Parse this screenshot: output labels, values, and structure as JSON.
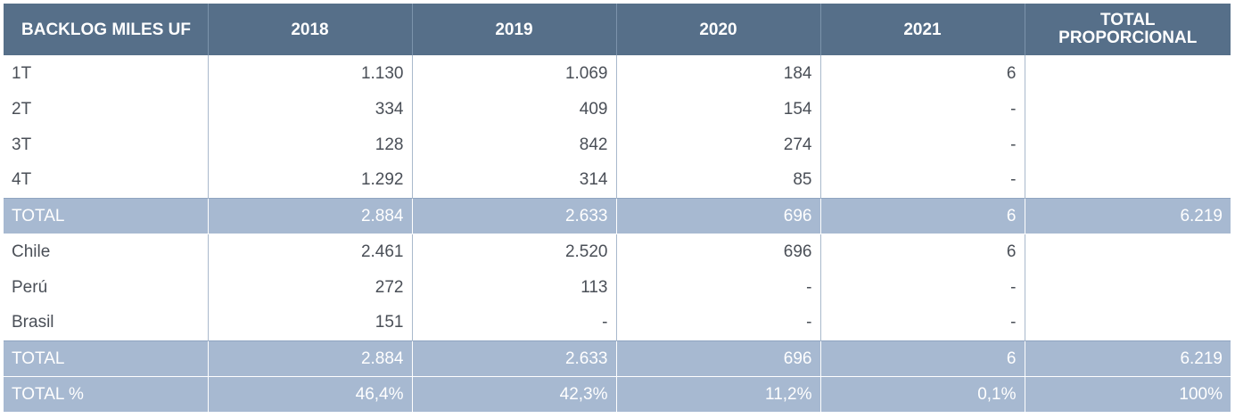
{
  "headers": [
    "BACKLOG MILES UF",
    "2018",
    "2019",
    "2020",
    "2021",
    "TOTAL\nPROPORCIONAL"
  ],
  "header_total_line1": "TOTAL",
  "header_total_line2": "PROPORCIONAL",
  "rows": [
    {
      "label": "1T",
      "v2018": "1.130",
      "v2019": "1.069",
      "v2020": "184",
      "v2021": "6",
      "total": ""
    },
    {
      "label": "2T",
      "v2018": "334",
      "v2019": "409",
      "v2020": "154",
      "v2021": "-",
      "total": ""
    },
    {
      "label": "3T",
      "v2018": "128",
      "v2019": "842",
      "v2020": "274",
      "v2021": "-",
      "total": ""
    },
    {
      "label": "4T",
      "v2018": "1.292",
      "v2019": "314",
      "v2020": "85",
      "v2021": "-",
      "total": ""
    },
    {
      "label": "TOTAL",
      "v2018": "2.884",
      "v2019": "2.633",
      "v2020": "696",
      "v2021": "6",
      "total": "6.219"
    },
    {
      "label": "Chile",
      "v2018": "2.461",
      "v2019": "2.520",
      "v2020": "696",
      "v2021": "6",
      "total": ""
    },
    {
      "label": "Perú",
      "v2018": "272",
      "v2019": "113",
      "v2020": "-",
      "v2021": "-",
      "total": ""
    },
    {
      "label": "Brasil",
      "v2018": "151",
      "v2019": "-",
      "v2020": "-",
      "v2021": "-",
      "total": ""
    },
    {
      "label": "TOTAL",
      "v2018": "2.884",
      "v2019": "2.633",
      "v2020": "696",
      "v2021": "6",
      "total": "6.219"
    },
    {
      "label": "TOTAL %",
      "v2018": "46,4%",
      "v2019": "42,3%",
      "v2020": "11,2%",
      "v2021": "0,1%",
      "total": "100%"
    }
  ],
  "colors": {
    "header_bg": "#566f89",
    "total_bg": "#a7b9d1",
    "text": "#4a4f57"
  }
}
